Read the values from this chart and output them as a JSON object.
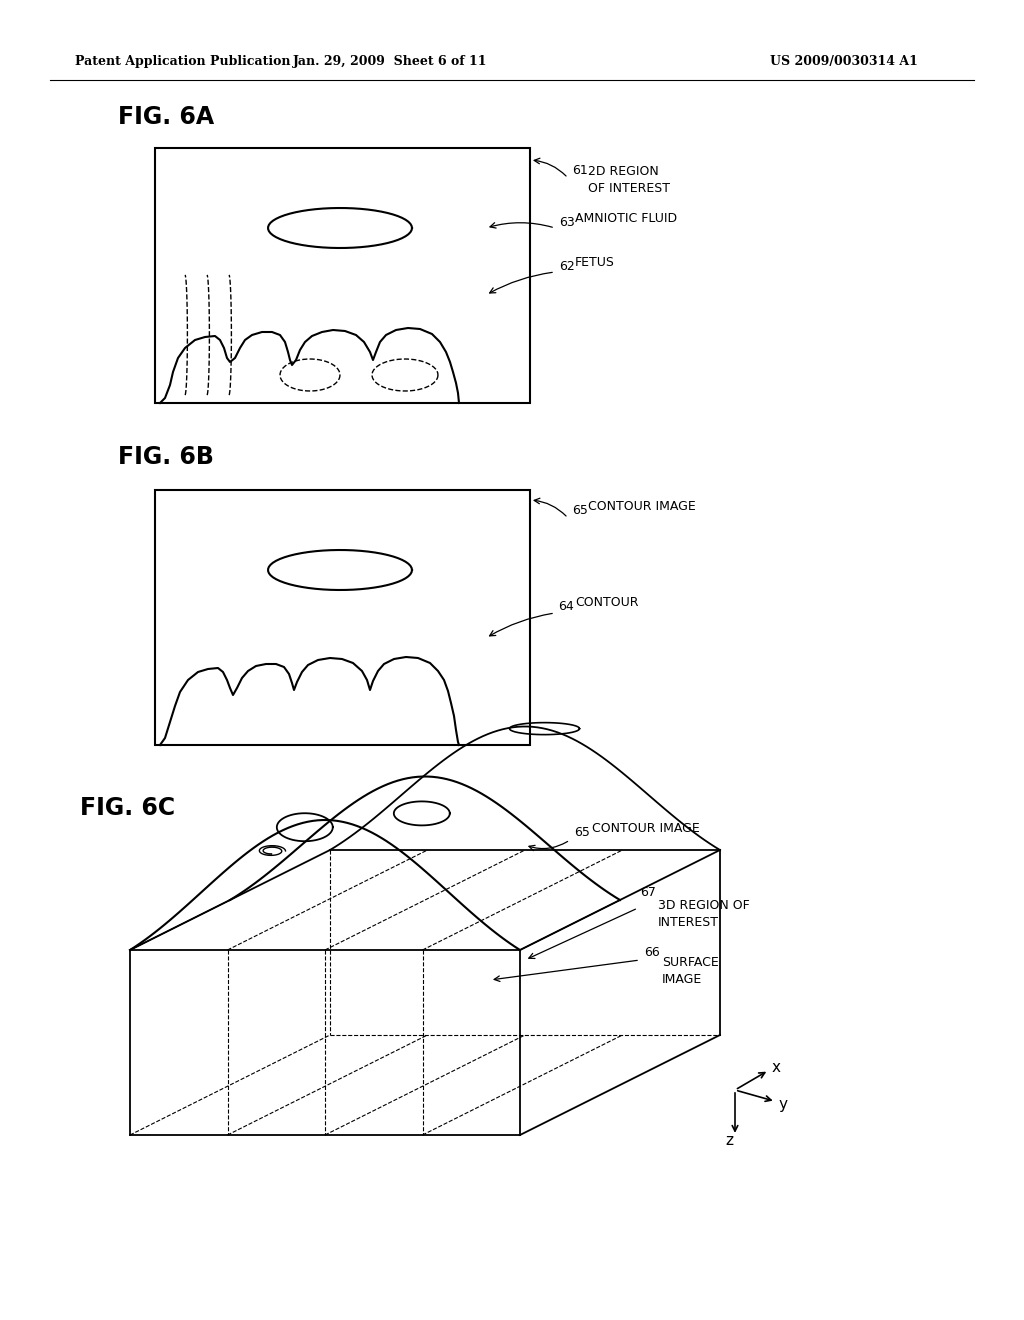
{
  "bg_color": "#ffffff",
  "header_left": "Patent Application Publication",
  "header_center": "Jan. 29, 2009  Sheet 6 of 11",
  "header_right": "US 2009/0030314 A1",
  "fig6a_title": "FIG. 6A",
  "fig6b_title": "FIG. 6B",
  "fig6c_title": "FIG. 6C",
  "label_61": "61",
  "label_61_text": "2D REGION\nOF INTEREST",
  "label_62": "62",
  "label_62_text": "FETUS",
  "label_63": "63",
  "label_63_text": "AMNIOTIC FLUID",
  "label_64": "64",
  "label_64_text": "CONTOUR",
  "label_65": "65",
  "label_65_text": "CONTOUR IMAGE",
  "label_66": "66",
  "label_66_text": "SURFACE\nIMAGE",
  "label_67": "67",
  "label_67_text": "3D REGION OF\nINTEREST",
  "line_color": "#000000",
  "line_width": 1.3
}
